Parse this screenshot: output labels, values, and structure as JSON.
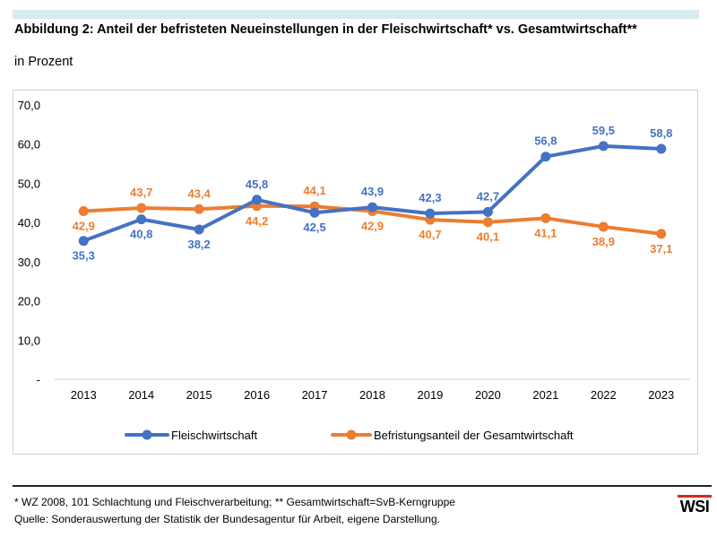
{
  "header": {
    "title": "Abbildung 2: Anteil der befristeten Neueinstellungen in der Fleischwirtschaft* vs. Gesamtwirtschaft**",
    "subtitle": "in Prozent"
  },
  "footer": {
    "footnote": "* WZ 2008, 101 Schlachtung und Fleischverarbeitung; ** Gesamtwirtschaft=SvB-Kerngruppe",
    "source": "Quelle: Sonderauswertung der Statistik der Bundesagentur für Arbeit, eigene Darstellung.",
    "logo_text": "WSI"
  },
  "chart_data": {
    "type": "line",
    "title": "Abbildung 2: Anteil der befristeten Neueinstellungen in der Fleischwirtschaft* vs. Gesamtwirtschaft**",
    "xlabel": "",
    "ylabel": "in Prozent",
    "categories": [
      "2013",
      "2014",
      "2015",
      "2016",
      "2017",
      "2018",
      "2019",
      "2020",
      "2021",
      "2022",
      "2023"
    ],
    "ylim": [
      0,
      70
    ],
    "yticks": [
      {
        "value": 0,
        "label": "-"
      },
      {
        "value": 10,
        "label": "10,0"
      },
      {
        "value": 20,
        "label": "20,0"
      },
      {
        "value": 30,
        "label": "30,0"
      },
      {
        "value": 40,
        "label": "40,0"
      },
      {
        "value": 50,
        "label": "50,0"
      },
      {
        "value": 60,
        "label": "60,0"
      },
      {
        "value": 70,
        "label": "70,0"
      }
    ],
    "grid": false,
    "legend_position": "bottom",
    "series": [
      {
        "name": "Fleischwirtschaft",
        "color": "#4472c4",
        "values": [
          35.3,
          40.8,
          38.2,
          45.8,
          42.5,
          43.9,
          42.3,
          42.7,
          56.8,
          59.5,
          58.8
        ],
        "labels": [
          "35,3",
          "40,8",
          "38,2",
          "45,8",
          "42,5",
          "43,9",
          "42,3",
          "42,7",
          "56,8",
          "59,5",
          "58,8"
        ],
        "label_side": [
          "below",
          "below",
          "below",
          "above",
          "below",
          "above",
          "above",
          "above",
          "above",
          "above",
          "above"
        ]
      },
      {
        "name": "Befristungsanteil der Gesamtwirtschaft",
        "color": "#ed7d31",
        "values": [
          42.9,
          43.7,
          43.4,
          44.2,
          44.1,
          42.9,
          40.7,
          40.1,
          41.1,
          38.9,
          37.1
        ],
        "labels": [
          "42,9",
          "43,7",
          "43,4",
          "44,2",
          "44,1",
          "42,9",
          "40,7",
          "40,1",
          "41,1",
          "38,9",
          "37,1"
        ],
        "label_side": [
          "below",
          "above",
          "above",
          "below",
          "above",
          "below",
          "below",
          "below",
          "below",
          "below",
          "below"
        ]
      }
    ]
  }
}
